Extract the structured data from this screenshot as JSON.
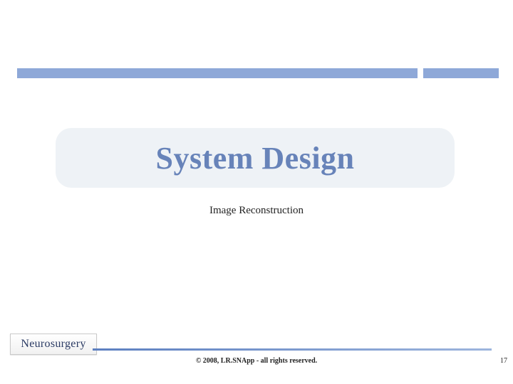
{
  "layout": {
    "top_rule_color": "#8ea8d8",
    "title_pill_bg": "#eef2f6",
    "title_text_color": "#6783b9",
    "footer_line_gradient_start": "#5c7fc0",
    "footer_line_gradient_end": "#9db5dd",
    "page_bg": "#ffffff"
  },
  "title": "System Design",
  "subtitle": "Image Reconstruction",
  "logo_text": "Neurosurgery",
  "footer_text": "© 2008, LR.SNApp - all rights reserved.",
  "page_number": "17"
}
